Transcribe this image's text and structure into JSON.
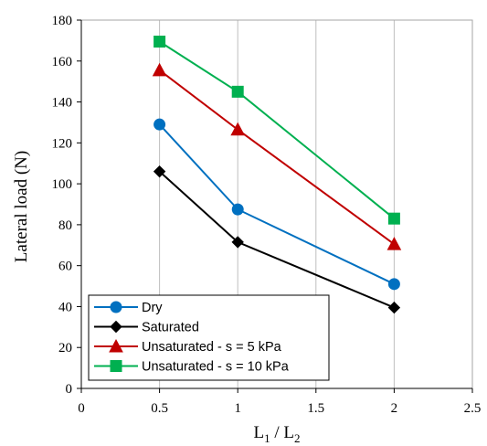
{
  "chart_data": {
    "type": "line",
    "title": "",
    "xlabel": {
      "main": "L",
      "sub1": "1",
      "sep": " / L",
      "sub2": "2"
    },
    "ylabel": "Lateral load (N)",
    "xlim": [
      0,
      2.5
    ],
    "ylim": [
      0,
      180
    ],
    "xticks": [
      0,
      0.5,
      1,
      1.5,
      2,
      2.5
    ],
    "xtick_labels": [
      "0",
      "0.5",
      "1",
      "1.5",
      "2",
      "2.5"
    ],
    "yticks": [
      0,
      20,
      40,
      60,
      80,
      100,
      120,
      140,
      160,
      180
    ],
    "ytick_labels": [
      "0",
      "20",
      "40",
      "60",
      "80",
      "100",
      "120",
      "140",
      "160",
      "180"
    ],
    "grid": {
      "vertical": true,
      "horizontal": false
    },
    "legend_position": "bottom-left",
    "series": [
      {
        "name": "Dry",
        "x": [
          0.5,
          1,
          2
        ],
        "values": [
          129,
          87.5,
          51
        ],
        "color": "#0070C0",
        "marker": "circle"
      },
      {
        "name": "Saturated",
        "x": [
          0.5,
          1,
          2
        ],
        "values": [
          106,
          71.5,
          39.5
        ],
        "color": "#000000",
        "marker": "diamond"
      },
      {
        "name": "Unsaturated - s = 5 kPa",
        "x": [
          0.5,
          1,
          2
        ],
        "values": [
          155.5,
          126.5,
          70.5
        ],
        "color": "#C00000",
        "marker": "triangle"
      },
      {
        "name": "Unsaturated - s = 10 kPa",
        "x": [
          0.5,
          1,
          2
        ],
        "values": [
          169.5,
          145,
          83
        ],
        "color": "#00B050",
        "marker": "square"
      }
    ]
  }
}
